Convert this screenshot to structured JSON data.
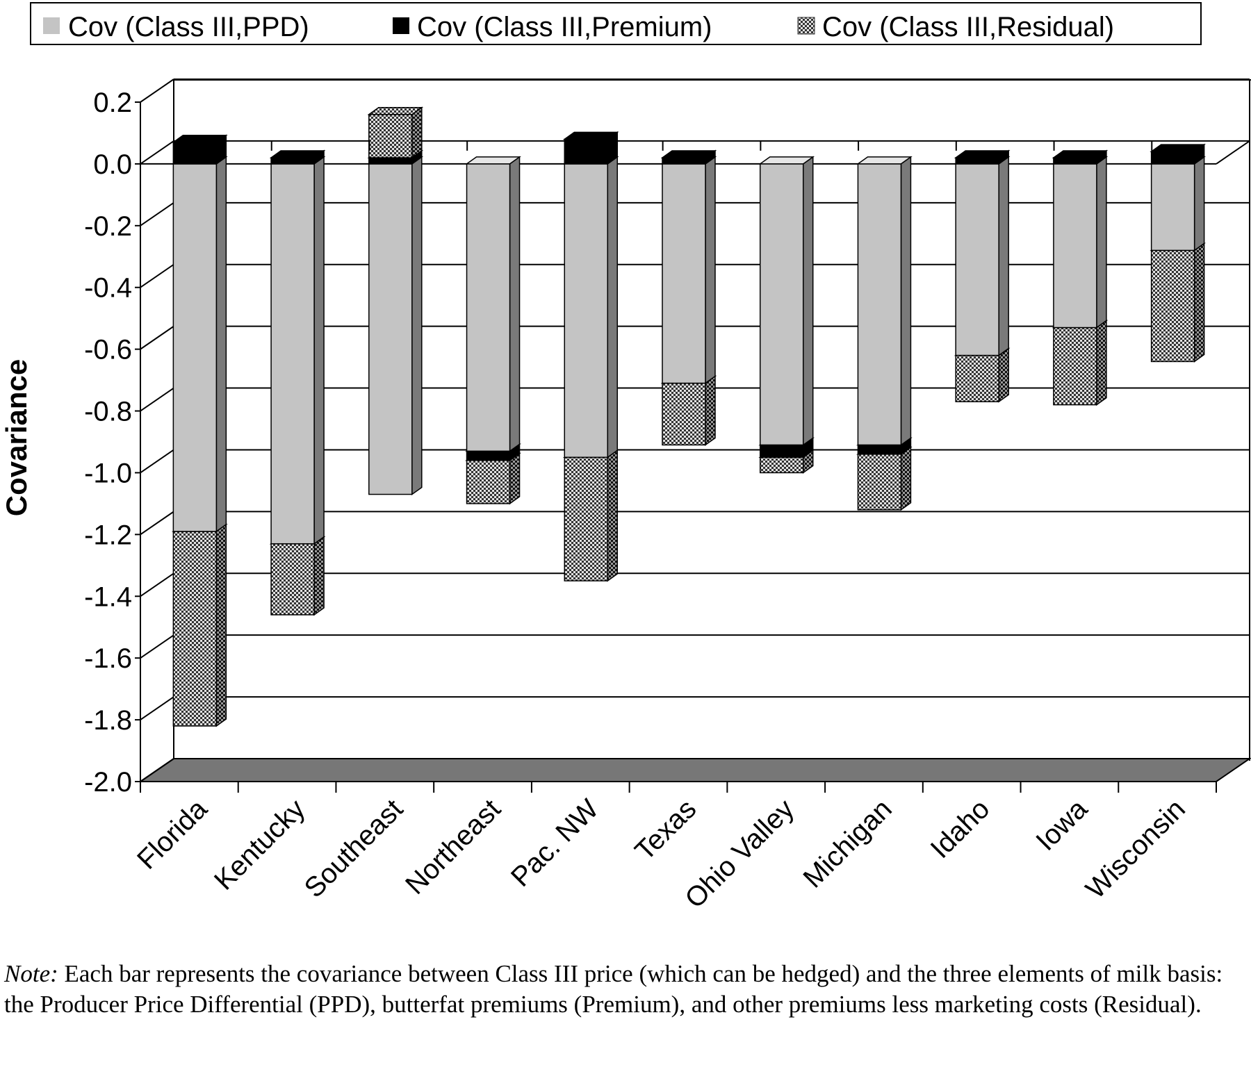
{
  "chart_data": {
    "type": "bar",
    "stacked": true,
    "style": "3d",
    "ylabel": "Covariance",
    "xlabel": "",
    "ylim": [
      -2.0,
      0.2
    ],
    "yticks": [
      "0.2",
      "0.0",
      "-0.2",
      "-0.4",
      "-0.6",
      "-0.8",
      "-1.0",
      "-1.2",
      "-1.4",
      "-1.6",
      "-1.8",
      "-2.0"
    ],
    "grid": true,
    "legend_position": "top",
    "categories": [
      "Florida",
      "Kentucky",
      "Southeast",
      "Northeast",
      "Pac. NW",
      "Texas",
      "Ohio Valley",
      "Michigan",
      "Idaho",
      "Iowa",
      "Wisconsin"
    ],
    "series": [
      {
        "name": "Cov (Class III,PPD)",
        "color": "#c4c4c4",
        "values": [
          -1.19,
          -1.23,
          -1.07,
          -0.93,
          -0.95,
          -0.71,
          -0.91,
          -0.91,
          -0.62,
          -0.53,
          -0.28
        ]
      },
      {
        "name": "Cov (Class III,Premium)",
        "color": "#000000",
        "values": [
          0.07,
          0.02,
          0.02,
          -0.03,
          0.08,
          0.02,
          -0.04,
          -0.03,
          0.02,
          0.02,
          0.04
        ]
      },
      {
        "name": "Cov (Class III,Residual)",
        "color": "#8a8a8a",
        "values": [
          -0.63,
          -0.23,
          0.14,
          -0.14,
          -0.4,
          -0.2,
          -0.05,
          -0.18,
          -0.15,
          -0.25,
          -0.36
        ]
      }
    ]
  },
  "note": {
    "label": "Note:",
    "text": " Each bar represents the covariance between Class III price (which can be hedged) and the three elements of milk basis: the Producer Price Differential (PPD), butterfat premiums (Premium), and other premiums less marketing costs (Residual)."
  }
}
